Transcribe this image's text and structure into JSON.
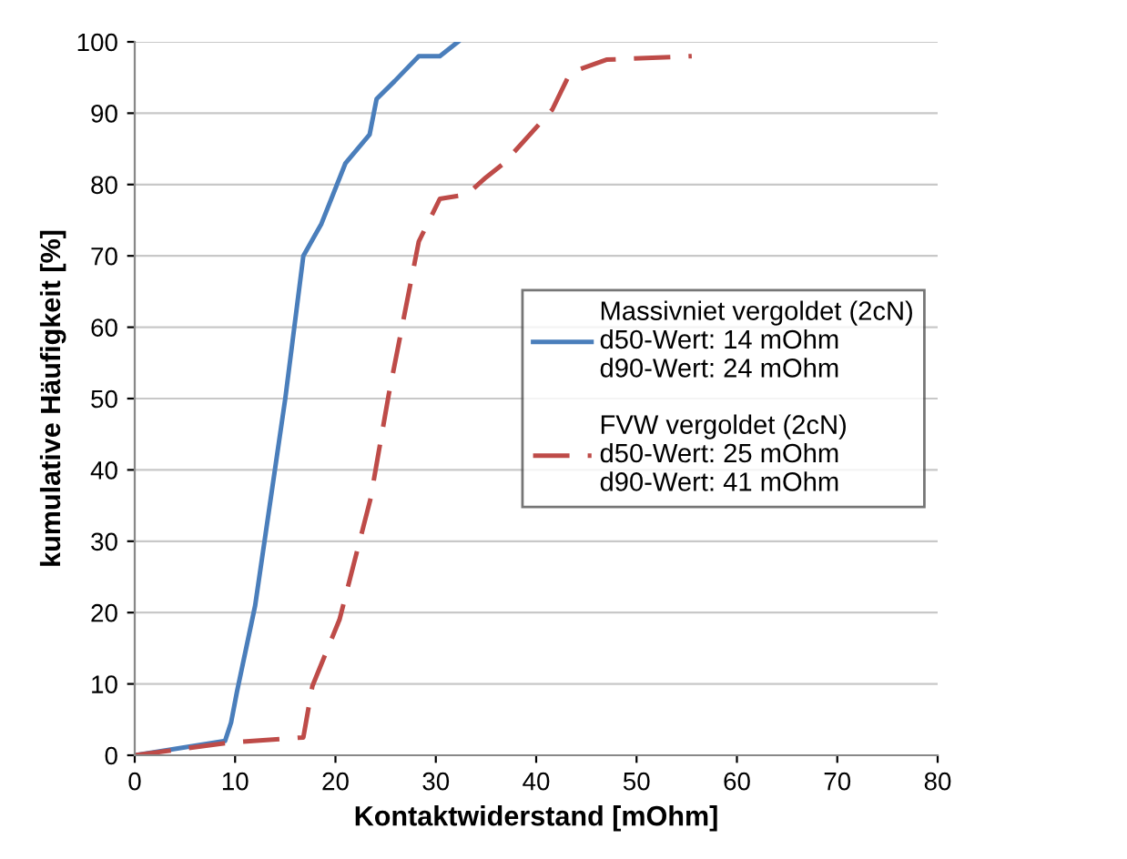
{
  "chart_data": {
    "type": "line",
    "xlabel": "Kontaktwiderstand [mOhm]",
    "ylabel": "kumulative Häufigkeit [%]",
    "xlim": [
      0,
      80
    ],
    "xticks": [
      0,
      10,
      20,
      30,
      40,
      50,
      60,
      70,
      80
    ],
    "ylim": [
      0,
      100
    ],
    "yticks": [
      0,
      10,
      20,
      30,
      40,
      50,
      60,
      70,
      80,
      90,
      100
    ],
    "grid": "y",
    "legend": "right",
    "marker": "none",
    "series": [
      {
        "name": "Massivniet vergoldet (2cN)\nd50-Wert: 14 mOhm\nd90-Wert: 24 mOhm",
        "color": "#4a7ebb",
        "line_style": "solid",
        "x": [
          0,
          9.0,
          9.6,
          10.2,
          12,
          15,
          16.8,
          18.6,
          21,
          23.4,
          24.1,
          25.9,
          28.3,
          30.4,
          32.2
        ],
        "values": [
          0,
          2,
          4.6,
          9,
          21,
          50,
          70,
          74.5,
          83,
          87,
          92,
          94.5,
          98,
          98,
          100
        ]
      },
      {
        "name": "FVW vergoldet (2cN)\nd50-Wert: 25 mOhm\nd90-Wert: 41 mOhm",
        "color": "#be4b48",
        "line_style": "dashed",
        "x": [
          0,
          9.6,
          16.8,
          17.7,
          20.4,
          23.5,
          25.3,
          28.3,
          30.4,
          33.1,
          35,
          36.8,
          41.6,
          43.4,
          47,
          55.5
        ],
        "values": [
          0,
          1.8,
          2.5,
          9.7,
          19,
          36,
          50.5,
          72,
          78,
          78.6,
          81,
          83,
          90.5,
          95.7,
          97.5,
          98
        ]
      }
    ]
  }
}
